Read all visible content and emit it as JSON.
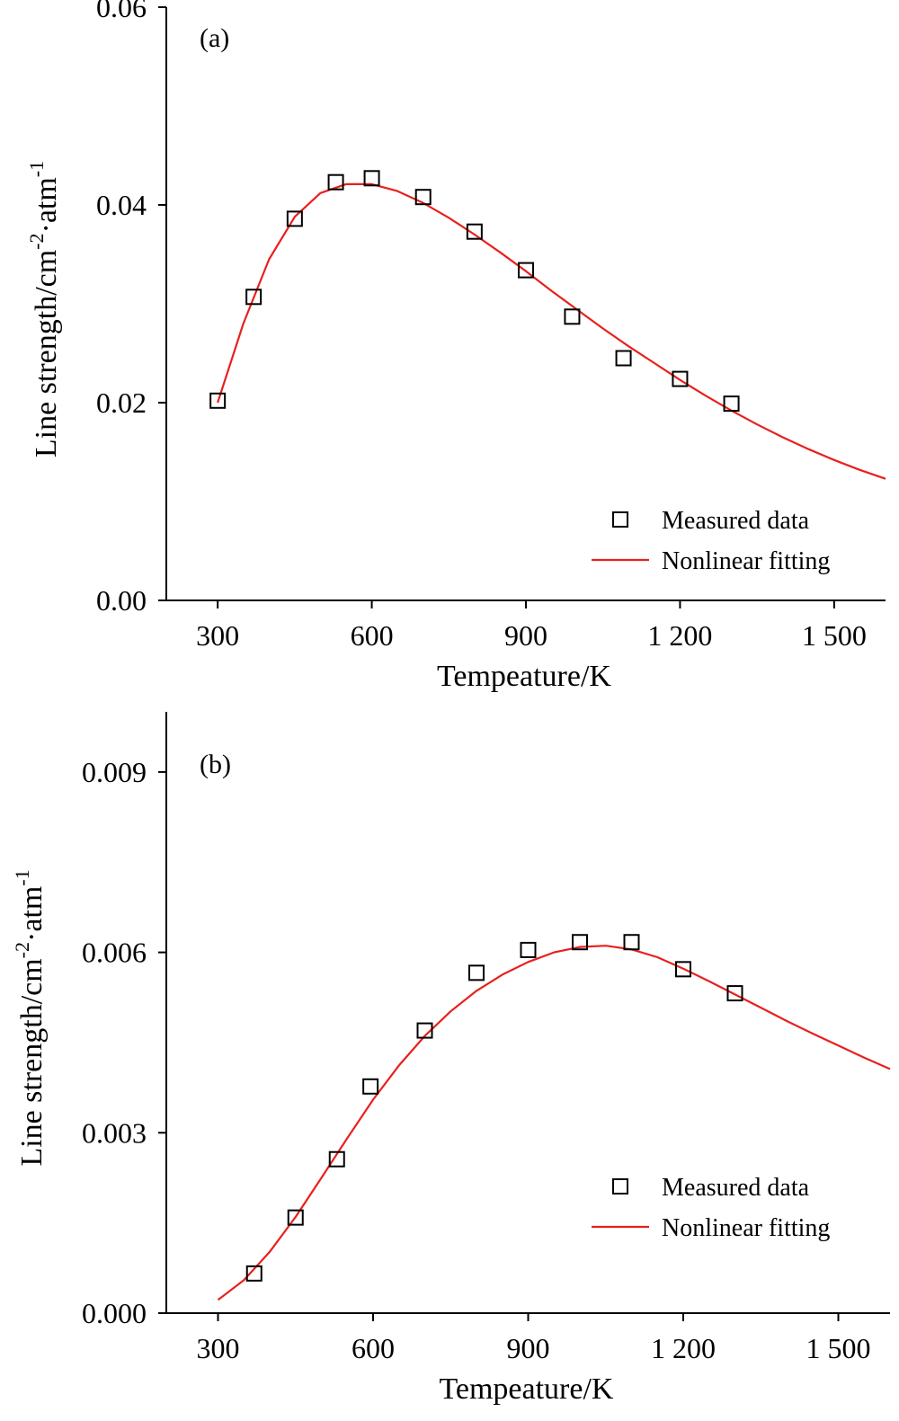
{
  "chart_data": [
    {
      "type": "scatter",
      "panel_label": "(a)",
      "xlabel": "Tempeature/K",
      "ylabel_main": "Line strength/cm",
      "ylabel_sup1": "-2",
      "ylabel_mid": "·atm",
      "ylabel_sup2": "-1",
      "xlim": [
        200,
        1600
      ],
      "ylim": [
        0,
        0.06
      ],
      "x_ticks": [
        300,
        600,
        900,
        1200,
        1500
      ],
      "x_tick_labels": [
        "300",
        "600",
        "900",
        "1 200",
        "1 500"
      ],
      "y_ticks": [
        0,
        0.02,
        0.04,
        0.06
      ],
      "y_tick_labels": [
        "0.00",
        "0.02",
        "0.04",
        "0.06"
      ],
      "grid": false,
      "legend_position": "bottom-right",
      "series": [
        {
          "name": "Measured data",
          "kind": "scatter",
          "marker": "open-square",
          "color": "#000000",
          "x": [
            300,
            370,
            450,
            530,
            600,
            700,
            800,
            900,
            990,
            1090,
            1200,
            1300
          ],
          "y": [
            0.0202,
            0.0307,
            0.0386,
            0.0423,
            0.0427,
            0.0408,
            0.0373,
            0.0334,
            0.0287,
            0.0245,
            0.0224,
            0.0199
          ]
        },
        {
          "name": "Nonlinear fitting",
          "kind": "line",
          "color": "#e8201e",
          "x": [
            300,
            350,
            400,
            450,
            500,
            550,
            600,
            650,
            700,
            750,
            800,
            850,
            900,
            950,
            1000,
            1050,
            1100,
            1150,
            1200,
            1250,
            1300,
            1350,
            1400,
            1450,
            1500,
            1550,
            1600
          ],
          "y": [
            0.02,
            0.028,
            0.0345,
            0.0388,
            0.0412,
            0.0421,
            0.0421,
            0.0414,
            0.0402,
            0.0387,
            0.037,
            0.0352,
            0.0333,
            0.0313,
            0.0294,
            0.0275,
            0.0257,
            0.024,
            0.0223,
            0.0207,
            0.0192,
            0.0178,
            0.0165,
            0.0153,
            0.0142,
            0.0132,
            0.0123
          ]
        }
      ]
    },
    {
      "type": "scatter",
      "panel_label": "(b)",
      "xlabel": "Tempeature/K",
      "ylabel_main": "Line strength/cm",
      "ylabel_sup1": "-2",
      "ylabel_mid": "·atm",
      "ylabel_sup2": "-1",
      "xlim": [
        200,
        1600
      ],
      "ylim": [
        0,
        0.01
      ],
      "x_ticks": [
        300,
        600,
        900,
        1200,
        1500
      ],
      "x_tick_labels": [
        "300",
        "600",
        "900",
        "1 200",
        "1 500"
      ],
      "y_ticks": [
        0,
        0.003,
        0.006,
        0.009
      ],
      "y_tick_labels": [
        "0.000",
        "0.003",
        "0.006",
        "0.009"
      ],
      "grid": false,
      "legend_position": "bottom-right",
      "series": [
        {
          "name": "Measured data",
          "kind": "scatter",
          "marker": "open-square",
          "color": "#000000",
          "x": [
            370,
            450,
            530,
            595,
            700,
            800,
            900,
            1000,
            1100,
            1200,
            1300
          ],
          "y": [
            0.00066,
            0.00159,
            0.00256,
            0.00377,
            0.0047,
            0.00566,
            0.00604,
            0.00617,
            0.00617,
            0.00572,
            0.00532
          ]
        },
        {
          "name": "Nonlinear fitting",
          "kind": "line",
          "color": "#e8201e",
          "x": [
            300,
            350,
            400,
            450,
            500,
            550,
            600,
            650,
            700,
            750,
            800,
            850,
            900,
            950,
            1000,
            1050,
            1100,
            1150,
            1200,
            1250,
            1300,
            1350,
            1400,
            1450,
            1500,
            1550,
            1600
          ],
          "y": [
            0.00022,
            0.00055,
            0.00102,
            0.0016,
            0.00225,
            0.00291,
            0.00355,
            0.00412,
            0.00461,
            0.00502,
            0.00536,
            0.00563,
            0.00584,
            0.006,
            0.00609,
            0.00611,
            0.00605,
            0.00592,
            0.00573,
            0.00552,
            0.0053,
            0.00508,
            0.00486,
            0.00465,
            0.00445,
            0.00425,
            0.00406
          ]
        }
      ]
    }
  ]
}
